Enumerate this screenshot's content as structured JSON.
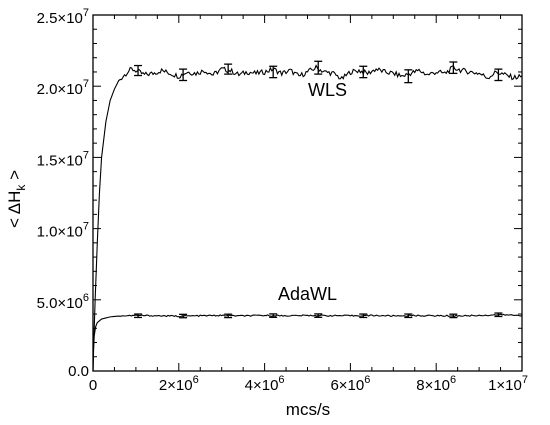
{
  "chart_data": {
    "type": "line",
    "title": "",
    "xlabel": "mcs/s",
    "ylabel": "< ΔH",
    "ylabel_subscript": "k",
    "ylabel_close": " >",
    "xlim": [
      0,
      10000000
    ],
    "ylim": [
      0,
      25000000
    ],
    "x_ticks": [
      {
        "value": 0,
        "mantissa": "0",
        "exponent": ""
      },
      {
        "value": 2000000,
        "mantissa": "2×10",
        "exponent": "6"
      },
      {
        "value": 4000000,
        "mantissa": "4×10",
        "exponent": "6"
      },
      {
        "value": 6000000,
        "mantissa": "6×10",
        "exponent": "6"
      },
      {
        "value": 8000000,
        "mantissa": "8×10",
        "exponent": "6"
      },
      {
        "value": 10000000,
        "mantissa": "1×10",
        "exponent": "7"
      }
    ],
    "y_ticks": [
      {
        "value": 0,
        "mantissa": "0.0",
        "exponent": ""
      },
      {
        "value": 5000000,
        "mantissa": "5.0×10",
        "exponent": "6"
      },
      {
        "value": 10000000,
        "mantissa": "1.0×10",
        "exponent": "7"
      },
      {
        "value": 15000000,
        "mantissa": "1.5×10",
        "exponent": "7"
      },
      {
        "value": 20000000,
        "mantissa": "2.0×10",
        "exponent": "7"
      },
      {
        "value": 25000000,
        "mantissa": "2.5×10",
        "exponent": "7"
      }
    ],
    "series": [
      {
        "label": "WLS",
        "label_at": [
          5000000,
          19300000
        ],
        "color": "#000000",
        "rise": {
          "start": 21000000,
          "tau": 300000
        },
        "points": [
          [
            0,
            0
          ],
          [
            20000,
            2200000
          ],
          [
            50000,
            5000000
          ],
          [
            100000,
            9000000
          ],
          [
            150000,
            12500000
          ],
          [
            200000,
            15000000
          ],
          [
            300000,
            17500000
          ],
          [
            400000,
            19000000
          ],
          [
            500000,
            19800000
          ],
          [
            600000,
            20400000
          ],
          [
            700000,
            20700000
          ],
          [
            800000,
            21000000
          ],
          [
            900000,
            21200000
          ],
          [
            1000000,
            21100000
          ],
          [
            1200000,
            20800000
          ],
          [
            1400000,
            20900000
          ],
          [
            1600000,
            21100000
          ],
          [
            1800000,
            20900000
          ],
          [
            2000000,
            20700000
          ],
          [
            2200000,
            21000000
          ],
          [
            2400000,
            20900000
          ],
          [
            2600000,
            21100000
          ],
          [
            2800000,
            20800000
          ],
          [
            3000000,
            21200000
          ],
          [
            3200000,
            21100000
          ],
          [
            3400000,
            20800000
          ],
          [
            3600000,
            21000000
          ],
          [
            3800000,
            20900000
          ],
          [
            4000000,
            21000000
          ],
          [
            4200000,
            21200000
          ],
          [
            4400000,
            20900000
          ],
          [
            4600000,
            21100000
          ],
          [
            4800000,
            20700000
          ],
          [
            5000000,
            21000000
          ],
          [
            5200000,
            21300000
          ],
          [
            5400000,
            21000000
          ],
          [
            5600000,
            20900000
          ],
          [
            5800000,
            20500000
          ],
          [
            6000000,
            21000000
          ],
          [
            6200000,
            21100000
          ],
          [
            6400000,
            20900000
          ],
          [
            6600000,
            21200000
          ],
          [
            6800000,
            21000000
          ],
          [
            7000000,
            20900000
          ],
          [
            7200000,
            20700000
          ],
          [
            7400000,
            20900000
          ],
          [
            7600000,
            21100000
          ],
          [
            7800000,
            20800000
          ],
          [
            8000000,
            21000000
          ],
          [
            8200000,
            20900000
          ],
          [
            8400000,
            21300000
          ],
          [
            8600000,
            21100000
          ],
          [
            8800000,
            21000000
          ],
          [
            9000000,
            20900000
          ],
          [
            9200000,
            20600000
          ],
          [
            9400000,
            21000000
          ],
          [
            9600000,
            20800000
          ],
          [
            9800000,
            20600000
          ],
          [
            10000000,
            20700000
          ]
        ],
        "error_bars": [
          [
            1050000,
            21100000,
            350000
          ],
          [
            2100000,
            20800000,
            400000
          ],
          [
            3150000,
            21200000,
            350000
          ],
          [
            4200000,
            21000000,
            400000
          ],
          [
            5250000,
            21300000,
            450000
          ],
          [
            6300000,
            21000000,
            400000
          ],
          [
            7350000,
            20700000,
            450000
          ],
          [
            8400000,
            21300000,
            400000
          ],
          [
            9450000,
            20800000,
            400000
          ]
        ]
      },
      {
        "label": "AdaWL",
        "label_at": [
          5000000,
          5000000
        ],
        "color": "#000000",
        "rise": {
          "start": 1500000,
          "tau": 120000
        },
        "points": [
          [
            0,
            0
          ],
          [
            10000,
            1500000
          ],
          [
            30000,
            2500000
          ],
          [
            60000,
            3100000
          ],
          [
            100000,
            3400000
          ],
          [
            200000,
            3650000
          ],
          [
            400000,
            3800000
          ],
          [
            600000,
            3860000
          ],
          [
            1000000,
            3900000
          ],
          [
            1500000,
            3880000
          ],
          [
            2000000,
            3850000
          ],
          [
            2500000,
            3880000
          ],
          [
            3000000,
            3900000
          ],
          [
            3500000,
            3870000
          ],
          [
            4000000,
            3900000
          ],
          [
            4500000,
            3880000
          ],
          [
            5000000,
            3900000
          ],
          [
            5500000,
            3890000
          ],
          [
            6000000,
            3880000
          ],
          [
            6500000,
            3900000
          ],
          [
            7000000,
            3870000
          ],
          [
            7500000,
            3890000
          ],
          [
            8000000,
            3880000
          ],
          [
            8500000,
            3870000
          ],
          [
            9000000,
            3900000
          ],
          [
            9500000,
            3950000
          ],
          [
            10000000,
            3900000
          ]
        ],
        "error_bars": [
          [
            1050000,
            3880000,
            120000
          ],
          [
            2100000,
            3860000,
            120000
          ],
          [
            3150000,
            3870000,
            120000
          ],
          [
            4200000,
            3890000,
            120000
          ],
          [
            5250000,
            3890000,
            120000
          ],
          [
            6300000,
            3880000,
            120000
          ],
          [
            7350000,
            3880000,
            120000
          ],
          [
            8400000,
            3870000,
            120000
          ],
          [
            9450000,
            3950000,
            120000
          ]
        ]
      }
    ]
  }
}
